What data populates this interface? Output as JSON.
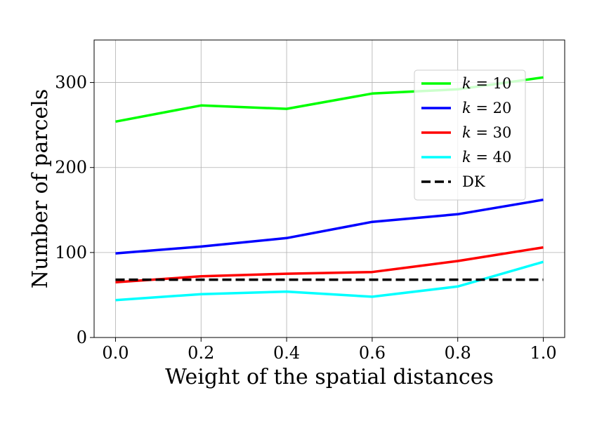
{
  "chart_data": {
    "type": "line",
    "title": "",
    "xlabel": "Weight of the spatial distances",
    "ylabel": "Number of parcels",
    "x": [
      0.0,
      0.2,
      0.4,
      0.6,
      0.8,
      1.0
    ],
    "x_tick_labels": [
      "0.0",
      "0.2",
      "0.4",
      "0.6",
      "0.8",
      "1.0"
    ],
    "y_ticks": [
      0,
      100,
      200,
      300
    ],
    "y_tick_labels": [
      "0",
      "100",
      "200",
      "300"
    ],
    "xlim": [
      -0.05,
      1.05
    ],
    "ylim": [
      0,
      350
    ],
    "grid": true,
    "legend_position": "upper right",
    "series": [
      {
        "name": "k = 10",
        "legend_var": "k",
        "legend_rest": " = 10",
        "color": "#00ff00",
        "dashed": false,
        "values": [
          254,
          273,
          269,
          287,
          292,
          306
        ]
      },
      {
        "name": "k = 20",
        "legend_var": "k",
        "legend_rest": " = 20",
        "color": "#0000ff",
        "dashed": false,
        "values": [
          99,
          107,
          117,
          136,
          145,
          162
        ]
      },
      {
        "name": "k = 30",
        "legend_var": "k",
        "legend_rest": " = 30",
        "color": "#ff0000",
        "dashed": false,
        "values": [
          65,
          72,
          75,
          77,
          90,
          106
        ]
      },
      {
        "name": "k = 40",
        "legend_var": "k",
        "legend_rest": " = 40",
        "color": "#00ffff",
        "dashed": false,
        "values": [
          44,
          51,
          54,
          48,
          60,
          89
        ]
      },
      {
        "name": "DK",
        "legend_var": "",
        "legend_rest": "DK",
        "color": "#000000",
        "dashed": true,
        "values": [
          68,
          68,
          68,
          68,
          68,
          68
        ]
      }
    ]
  }
}
